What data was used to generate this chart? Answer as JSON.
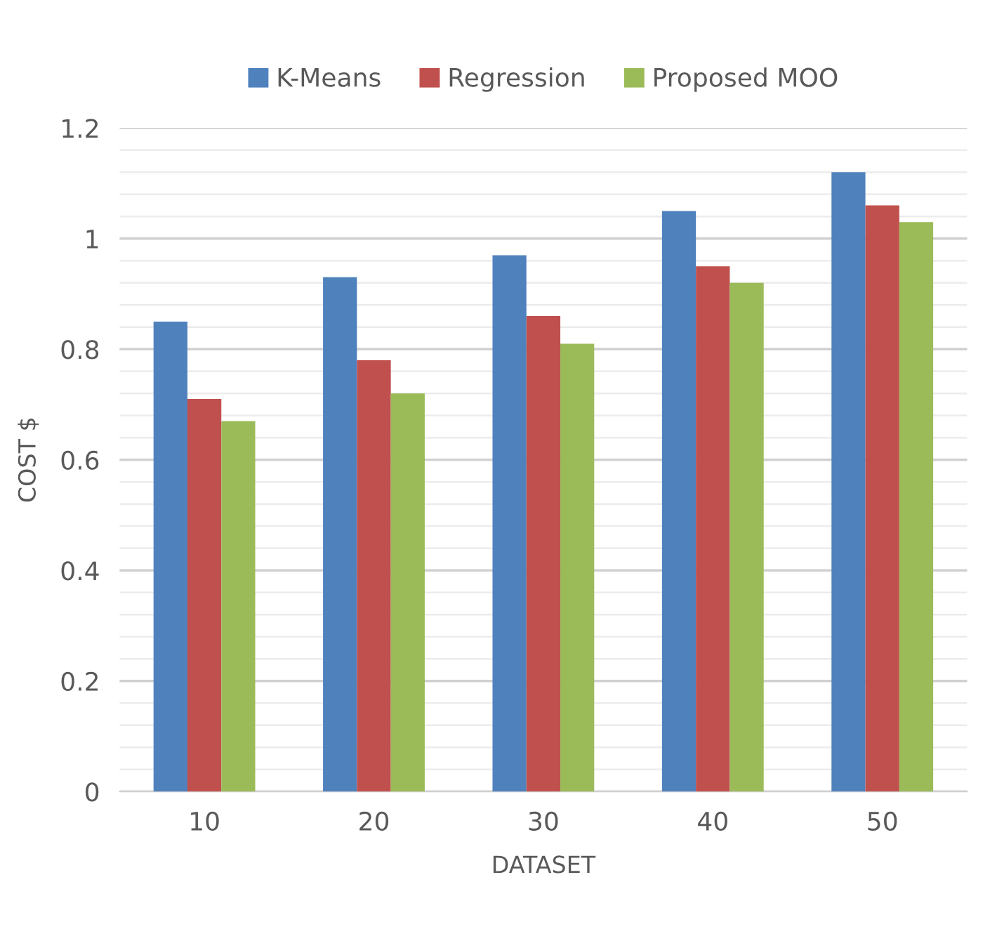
{
  "chart_data": {
    "type": "bar",
    "xlabel": "DATASET",
    "ylabel": "COST $",
    "categories": [
      "10",
      "20",
      "30",
      "40",
      "50"
    ],
    "series": [
      {
        "name": "K-Means",
        "color": "#4f81bd",
        "values": [
          0.85,
          0.93,
          0.97,
          1.05,
          1.12
        ]
      },
      {
        "name": "Regression",
        "color": "#c0504d",
        "values": [
          0.71,
          0.78,
          0.86,
          0.95,
          1.06
        ]
      },
      {
        "name": "Proposed MOO",
        "color": "#9bbb59",
        "values": [
          0.67,
          0.72,
          0.81,
          0.92,
          1.03
        ]
      }
    ],
    "ylim": [
      0,
      1.2
    ],
    "yticks": [
      0,
      0.2,
      0.4,
      0.6,
      0.8,
      1,
      1.2
    ],
    "grid": "y",
    "legend": "top"
  }
}
